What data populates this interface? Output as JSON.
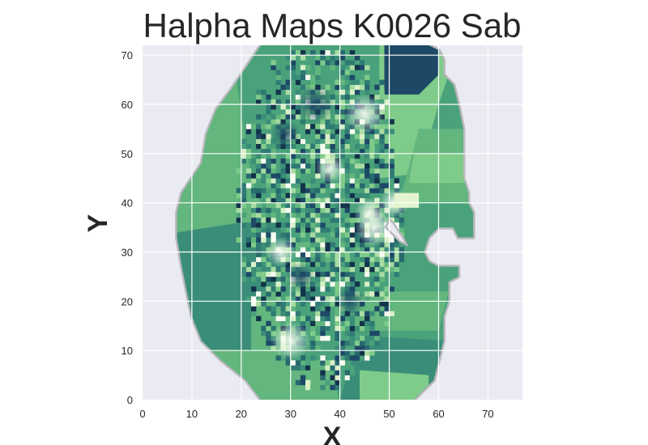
{
  "chart_data": {
    "type": "heatmap",
    "title": "Halpha Maps K0026 Sab",
    "xlabel": "X",
    "ylabel": "Y",
    "xlim": [
      0,
      77
    ],
    "ylim": [
      0,
      72
    ],
    "xticks": [
      0,
      10,
      20,
      30,
      40,
      50,
      60,
      70
    ],
    "yticks": [
      0,
      10,
      20,
      30,
      40,
      50,
      60,
      70
    ],
    "grid": true,
    "colormap": "YlGnBu-like (green to dark teal)",
    "colors": {
      "background": "#eaeaf2",
      "grid": "#ffffff",
      "low": "#f7fcf0",
      "mid": "#62b67e",
      "high": "#1d4966"
    },
    "footprint": [
      [
        33,
        72
      ],
      [
        51,
        72
      ],
      [
        58,
        72
      ],
      [
        60,
        71
      ],
      [
        61,
        69
      ],
      [
        61,
        66
      ],
      [
        63,
        64
      ],
      [
        64,
        60
      ],
      [
        65,
        55
      ],
      [
        65,
        50
      ],
      [
        65,
        45
      ],
      [
        66,
        42
      ],
      [
        66,
        40
      ],
      [
        67,
        38
      ],
      [
        67,
        33
      ],
      [
        64,
        33
      ],
      [
        63,
        35
      ],
      [
        60,
        35
      ],
      [
        58,
        33
      ],
      [
        57,
        30
      ],
      [
        58,
        28
      ],
      [
        60,
        27
      ],
      [
        64,
        27
      ],
      [
        64,
        25
      ],
      [
        62,
        24
      ],
      [
        62,
        20
      ],
      [
        61,
        17
      ],
      [
        61,
        12
      ],
      [
        60,
        8
      ],
      [
        59,
        4
      ],
      [
        57,
        2
      ],
      [
        55,
        0
      ],
      [
        44,
        -1
      ],
      [
        30,
        -1
      ],
      [
        24,
        0
      ],
      [
        21,
        4
      ],
      [
        16,
        8
      ],
      [
        12,
        12
      ],
      [
        10,
        17
      ],
      [
        9,
        22
      ],
      [
        8,
        27
      ],
      [
        7,
        33
      ],
      [
        7,
        38
      ],
      [
        8,
        42
      ],
      [
        10,
        45
      ],
      [
        12,
        48
      ],
      [
        13,
        54
      ],
      [
        15,
        59
      ],
      [
        18,
        63
      ],
      [
        20,
        66
      ],
      [
        22,
        69
      ],
      [
        24,
        72
      ]
    ],
    "cutout": [
      [
        49,
        35
      ],
      [
        51,
        33
      ],
      [
        52,
        32
      ],
      [
        54,
        31
      ],
      [
        53,
        33
      ],
      [
        51,
        36
      ],
      [
        50,
        37
      ]
    ]
  }
}
